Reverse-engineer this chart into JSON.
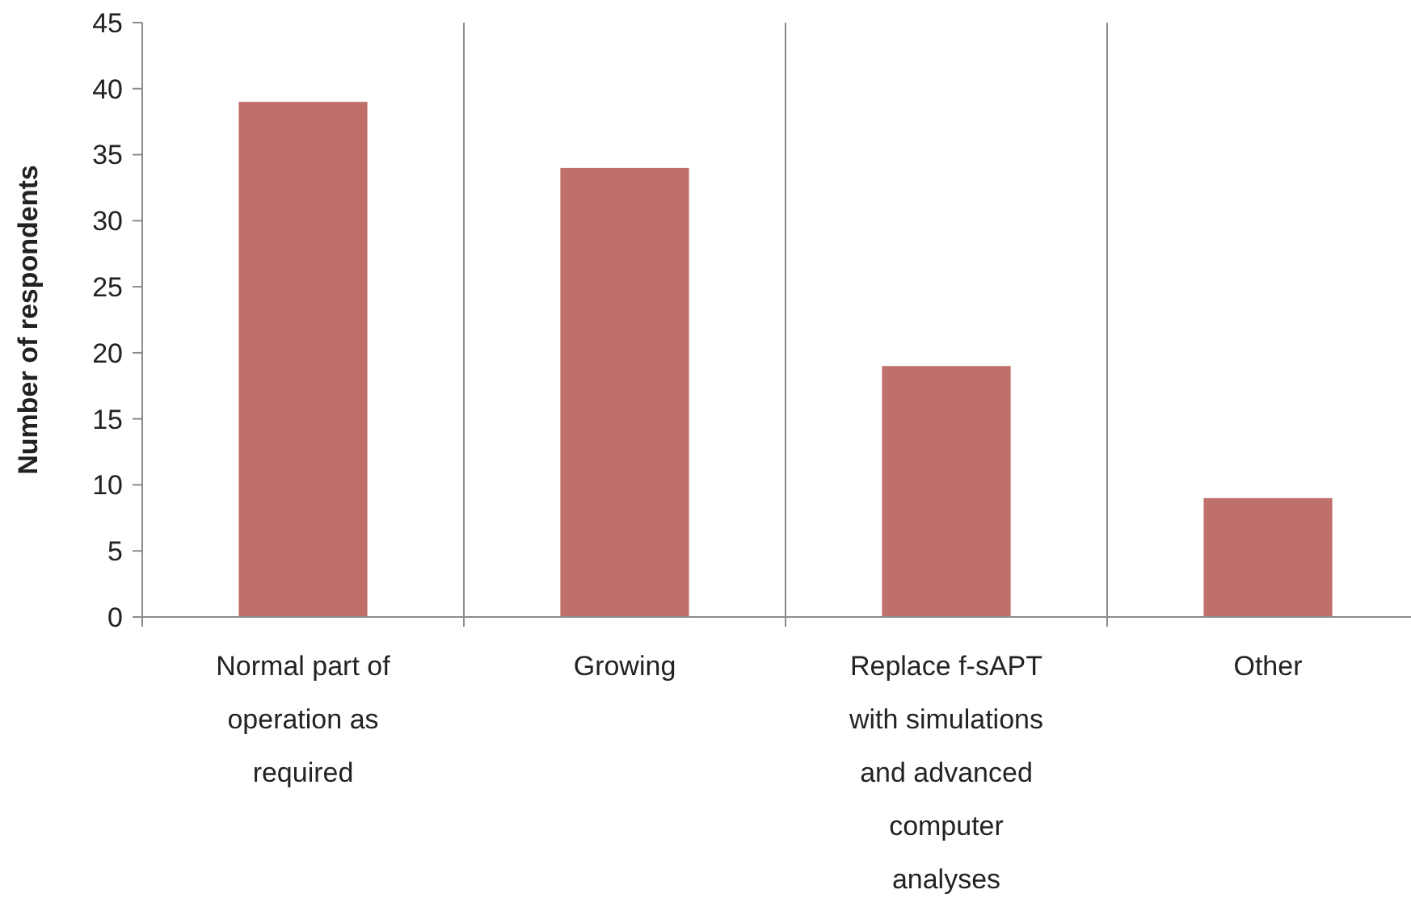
{
  "chart_data": {
    "type": "bar",
    "ylabel": "Number of respondents",
    "categories": [
      "Normal part of operation as required",
      "Growing",
      "Replace f-sAPT with simulations and advanced computer analyses",
      "Other"
    ],
    "values": [
      39,
      34,
      19,
      9
    ],
    "color": "#c0706a",
    "ylim": [
      0,
      45
    ],
    "yticks": [
      0,
      5,
      10,
      15,
      20,
      25,
      30,
      35,
      40,
      45
    ],
    "grid": "x"
  }
}
